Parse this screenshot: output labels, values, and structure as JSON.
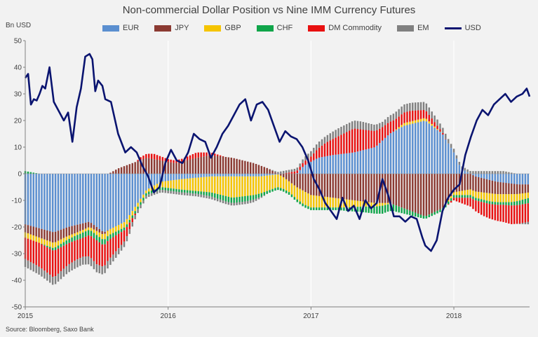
{
  "chart_data": {
    "type": "bar",
    "title": "Non-commercial Dollar Position vs Nine IMM Currency Futures",
    "ylabel": "Bn USD",
    "ylim": [
      -50,
      50
    ],
    "yticks": [
      50,
      40,
      30,
      20,
      10,
      0,
      -10,
      -20,
      -30,
      -40,
      -50
    ],
    "x_ticks": [
      "2015",
      "2016",
      "2017",
      "2018"
    ],
    "x_range": [
      2015.0,
      2018.53
    ],
    "grid": "vertical",
    "legend": "top",
    "source": "Source: Bloomberg, Saxo Bank",
    "colors": {
      "EUR": "#5b8fd0",
      "JPY": "#8b3a32",
      "GBP": "#f5c400",
      "CHF": "#10a54a",
      "DM Commodity": "#e81010",
      "EM": "#808080",
      "USD": "#0a1470",
      "background": "#f2f2f2",
      "grid": "#ffffff"
    },
    "series": [
      {
        "name": "EUR",
        "kind": "stacked-bar",
        "anchors": [
          [
            2015.0,
            -19
          ],
          [
            2015.2,
            -22
          ],
          [
            2015.3,
            -20
          ],
          [
            2015.45,
            -18
          ],
          [
            2015.55,
            -22
          ],
          [
            2015.7,
            -18
          ],
          [
            2015.85,
            -6
          ],
          [
            2015.95,
            -3
          ],
          [
            2016.1,
            -2
          ],
          [
            2016.3,
            -1
          ],
          [
            2016.5,
            -1
          ],
          [
            2016.65,
            -1
          ],
          [
            2016.8,
            0
          ],
          [
            2016.9,
            0
          ],
          [
            2016.95,
            3
          ],
          [
            2017.05,
            6
          ],
          [
            2017.15,
            7
          ],
          [
            2017.3,
            8
          ],
          [
            2017.45,
            10
          ],
          [
            2017.55,
            15
          ],
          [
            2017.65,
            18
          ],
          [
            2017.8,
            20
          ],
          [
            2017.92,
            15
          ],
          [
            2018.0,
            8
          ],
          [
            2018.05,
            2
          ],
          [
            2018.15,
            -1
          ],
          [
            2018.3,
            -3
          ],
          [
            2018.45,
            -4
          ],
          [
            2018.53,
            -4
          ]
        ]
      },
      {
        "name": "JPY",
        "kind": "stacked-bar",
        "anchors": [
          [
            2015.0,
            -3
          ],
          [
            2015.2,
            -4
          ],
          [
            2015.35,
            -3
          ],
          [
            2015.45,
            -2
          ],
          [
            2015.55,
            -1
          ],
          [
            2015.65,
            2
          ],
          [
            2015.75,
            4
          ],
          [
            2015.85,
            6
          ],
          [
            2015.95,
            5
          ],
          [
            2016.05,
            4
          ],
          [
            2016.2,
            6
          ],
          [
            2016.3,
            7
          ],
          [
            2016.45,
            6
          ],
          [
            2016.6,
            4
          ],
          [
            2016.7,
            2
          ],
          [
            2016.8,
            -1
          ],
          [
            2016.9,
            -5
          ],
          [
            2017.0,
            -8
          ],
          [
            2017.15,
            -9
          ],
          [
            2017.3,
            -10
          ],
          [
            2017.45,
            -11
          ],
          [
            2017.55,
            -11
          ],
          [
            2017.65,
            -13
          ],
          [
            2017.8,
            -16
          ],
          [
            2017.92,
            -13
          ],
          [
            2018.0,
            -7
          ],
          [
            2018.1,
            -6
          ],
          [
            2018.25,
            -5
          ],
          [
            2018.4,
            -4
          ],
          [
            2018.53,
            -3
          ]
        ]
      },
      {
        "name": "GBP",
        "kind": "stacked-bar",
        "anchors": [
          [
            2015.0,
            -2
          ],
          [
            2015.2,
            -2
          ],
          [
            2015.35,
            -1
          ],
          [
            2015.45,
            -1
          ],
          [
            2015.55,
            -2
          ],
          [
            2015.7,
            -2
          ],
          [
            2015.85,
            -1
          ],
          [
            2015.95,
            -2
          ],
          [
            2016.1,
            -4
          ],
          [
            2016.3,
            -6
          ],
          [
            2016.45,
            -8
          ],
          [
            2016.6,
            -7
          ],
          [
            2016.75,
            -5
          ],
          [
            2016.85,
            -4
          ],
          [
            2016.95,
            -5
          ],
          [
            2017.1,
            -4
          ],
          [
            2017.25,
            -3
          ],
          [
            2017.35,
            -2
          ],
          [
            2017.5,
            -1
          ],
          [
            2017.65,
            1
          ],
          [
            2017.8,
            1
          ],
          [
            2017.92,
            0
          ],
          [
            2018.0,
            -1
          ],
          [
            2018.1,
            -2
          ],
          [
            2018.25,
            -3
          ],
          [
            2018.4,
            -3
          ],
          [
            2018.53,
            -2
          ]
        ]
      },
      {
        "name": "CHF",
        "kind": "stacked-bar",
        "anchors": [
          [
            2015.0,
            1
          ],
          [
            2015.2,
            -1
          ],
          [
            2015.4,
            -2
          ],
          [
            2015.55,
            -2
          ],
          [
            2015.7,
            -1
          ],
          [
            2015.85,
            -1
          ],
          [
            2016.0,
            -1
          ],
          [
            2016.2,
            -1
          ],
          [
            2016.4,
            -2
          ],
          [
            2016.55,
            -2
          ],
          [
            2016.7,
            -1
          ],
          [
            2016.85,
            -1
          ],
          [
            2017.0,
            -1
          ],
          [
            2017.2,
            -1
          ],
          [
            2017.35,
            -2
          ],
          [
            2017.5,
            -3
          ],
          [
            2017.65,
            -2
          ],
          [
            2017.8,
            -1
          ],
          [
            2017.92,
            -1
          ],
          [
            2018.05,
            -1
          ],
          [
            2018.2,
            -1
          ],
          [
            2018.35,
            -1
          ],
          [
            2018.53,
            -2
          ]
        ]
      },
      {
        "name": "DM Commodity",
        "kind": "stacked-bar",
        "anchors": [
          [
            2015.0,
            -8
          ],
          [
            2015.1,
            -9
          ],
          [
            2015.2,
            -10
          ],
          [
            2015.3,
            -8
          ],
          [
            2015.4,
            -7
          ],
          [
            2015.5,
            -9
          ],
          [
            2015.6,
            -7
          ],
          [
            2015.7,
            -4
          ],
          [
            2015.8,
            1
          ],
          [
            2015.9,
            2
          ],
          [
            2016.0,
            1
          ],
          [
            2016.1,
            1
          ],
          [
            2016.2,
            2
          ],
          [
            2016.3,
            1
          ],
          [
            2016.4,
            0
          ],
          [
            2016.5,
            0
          ],
          [
            2016.6,
            0
          ],
          [
            2016.7,
            0
          ],
          [
            2016.8,
            0
          ],
          [
            2016.9,
            1
          ],
          [
            2017.0,
            2
          ],
          [
            2017.1,
            5
          ],
          [
            2017.2,
            7
          ],
          [
            2017.3,
            9
          ],
          [
            2017.4,
            7
          ],
          [
            2017.5,
            5
          ],
          [
            2017.6,
            4
          ],
          [
            2017.7,
            4
          ],
          [
            2017.8,
            3
          ],
          [
            2017.9,
            1
          ],
          [
            2018.0,
            -1
          ],
          [
            2018.1,
            -3
          ],
          [
            2018.2,
            -5
          ],
          [
            2018.3,
            -6
          ],
          [
            2018.4,
            -7
          ],
          [
            2018.53,
            -7
          ]
        ]
      },
      {
        "name": "EM",
        "kind": "stacked-bar",
        "anchors": [
          [
            2015.0,
            -3
          ],
          [
            2015.2,
            -3
          ],
          [
            2015.4,
            -3
          ],
          [
            2015.55,
            -3
          ],
          [
            2015.7,
            -2
          ],
          [
            2015.85,
            -1
          ],
          [
            2016.0,
            -1
          ],
          [
            2016.2,
            -1
          ],
          [
            2016.4,
            -1
          ],
          [
            2016.6,
            -1
          ],
          [
            2016.8,
            1
          ],
          [
            2016.9,
            1
          ],
          [
            2017.0,
            2
          ],
          [
            2017.2,
            3
          ],
          [
            2017.35,
            3
          ],
          [
            2017.5,
            2
          ],
          [
            2017.65,
            3
          ],
          [
            2017.8,
            3
          ],
          [
            2017.92,
            2
          ],
          [
            2018.05,
            1
          ],
          [
            2018.2,
            1
          ],
          [
            2018.35,
            1
          ],
          [
            2018.53,
            -1
          ]
        ]
      },
      {
        "name": "USD",
        "kind": "line",
        "anchors": [
          [
            2015.0,
            36
          ],
          [
            2015.02,
            37.5
          ],
          [
            2015.04,
            26
          ],
          [
            2015.06,
            28
          ],
          [
            2015.08,
            27.5
          ],
          [
            2015.1,
            30
          ],
          [
            2015.12,
            33
          ],
          [
            2015.14,
            32
          ],
          [
            2015.17,
            40
          ],
          [
            2015.2,
            27
          ],
          [
            2015.22,
            25
          ],
          [
            2015.24,
            23
          ],
          [
            2015.27,
            20
          ],
          [
            2015.3,
            23
          ],
          [
            2015.33,
            12
          ],
          [
            2015.36,
            25
          ],
          [
            2015.39,
            32
          ],
          [
            2015.42,
            44
          ],
          [
            2015.45,
            45
          ],
          [
            2015.47,
            43
          ],
          [
            2015.49,
            31
          ],
          [
            2015.51,
            35
          ],
          [
            2015.54,
            33
          ],
          [
            2015.56,
            28
          ],
          [
            2015.6,
            27
          ],
          [
            2015.65,
            15
          ],
          [
            2015.7,
            8
          ],
          [
            2015.74,
            10
          ],
          [
            2015.78,
            8
          ],
          [
            2015.82,
            3
          ],
          [
            2015.86,
            -1
          ],
          [
            2015.9,
            -7
          ],
          [
            2015.94,
            -5
          ],
          [
            2015.98,
            4
          ],
          [
            2016.02,
            9
          ],
          [
            2016.06,
            5
          ],
          [
            2016.1,
            4
          ],
          [
            2016.14,
            8
          ],
          [
            2016.18,
            15
          ],
          [
            2016.22,
            13
          ],
          [
            2016.26,
            12
          ],
          [
            2016.3,
            6
          ],
          [
            2016.34,
            10
          ],
          [
            2016.38,
            15
          ],
          [
            2016.42,
            18
          ],
          [
            2016.46,
            22
          ],
          [
            2016.5,
            26
          ],
          [
            2016.54,
            28
          ],
          [
            2016.58,
            20
          ],
          [
            2016.62,
            26
          ],
          [
            2016.66,
            27
          ],
          [
            2016.7,
            24
          ],
          [
            2016.74,
            18
          ],
          [
            2016.78,
            12
          ],
          [
            2016.82,
            16
          ],
          [
            2016.86,
            14
          ],
          [
            2016.9,
            13
          ],
          [
            2016.94,
            10
          ],
          [
            2016.98,
            5
          ],
          [
            2017.02,
            -2
          ],
          [
            2017.06,
            -6
          ],
          [
            2017.1,
            -11
          ],
          [
            2017.14,
            -14
          ],
          [
            2017.18,
            -17
          ],
          [
            2017.22,
            -9
          ],
          [
            2017.26,
            -14
          ],
          [
            2017.3,
            -12
          ],
          [
            2017.34,
            -17
          ],
          [
            2017.38,
            -10
          ],
          [
            2017.42,
            -13
          ],
          [
            2017.46,
            -11
          ],
          [
            2017.5,
            -2
          ],
          [
            2017.54,
            -8
          ],
          [
            2017.58,
            -16
          ],
          [
            2017.62,
            -16
          ],
          [
            2017.66,
            -18
          ],
          [
            2017.7,
            -16
          ],
          [
            2017.74,
            -17
          ],
          [
            2017.78,
            -24
          ],
          [
            2017.8,
            -27
          ],
          [
            2017.84,
            -29
          ],
          [
            2017.88,
            -25
          ],
          [
            2017.92,
            -14
          ],
          [
            2017.96,
            -9
          ],
          [
            2018.0,
            -6
          ],
          [
            2018.04,
            -4
          ],
          [
            2018.08,
            7
          ],
          [
            2018.12,
            14
          ],
          [
            2018.16,
            20
          ],
          [
            2018.2,
            24
          ],
          [
            2018.24,
            22
          ],
          [
            2018.28,
            26
          ],
          [
            2018.32,
            28
          ],
          [
            2018.36,
            30
          ],
          [
            2018.4,
            27
          ],
          [
            2018.44,
            29
          ],
          [
            2018.48,
            30
          ],
          [
            2018.51,
            32
          ],
          [
            2018.53,
            29
          ]
        ]
      }
    ]
  }
}
